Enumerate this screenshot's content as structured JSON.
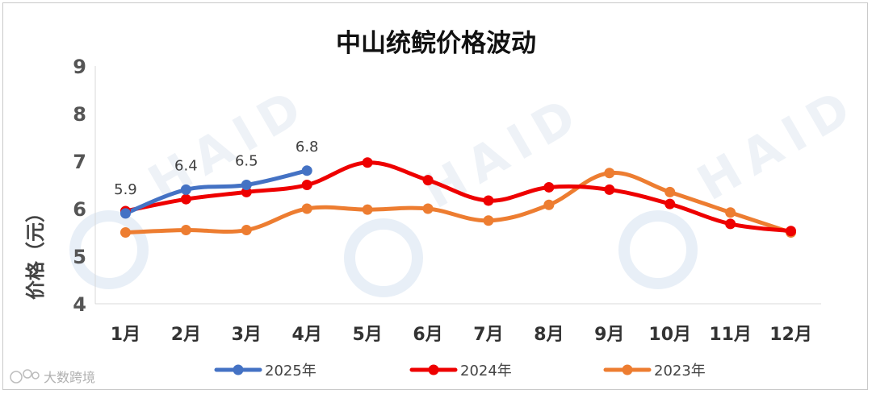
{
  "chart_data": {
    "type": "line",
    "title": "中山统鲩价格波动",
    "ylabel": "价格（元）",
    "xlabel": "",
    "categories": [
      "1月",
      "2月",
      "3月",
      "4月",
      "5月",
      "6月",
      "7月",
      "8月",
      "9月",
      "10月",
      "11月",
      "12月"
    ],
    "ylim": [
      4,
      9
    ],
    "yticks": [
      4,
      5,
      6,
      7,
      8,
      9
    ],
    "grid": false,
    "legend_position": "bottom",
    "series": [
      {
        "name": "2025年",
        "color": "#4472c4",
        "values": [
          5.9,
          6.4,
          6.5,
          6.8,
          null,
          null,
          null,
          null,
          null,
          null,
          null,
          null
        ],
        "labels": [
          "5.9",
          "6.4",
          "6.5",
          "6.8"
        ]
      },
      {
        "name": "2024年",
        "color": "#ee0000",
        "values": [
          5.95,
          6.2,
          6.35,
          6.5,
          6.97,
          6.6,
          6.17,
          6.45,
          6.4,
          6.1,
          5.68,
          5.53
        ]
      },
      {
        "name": "2023年",
        "color": "#ed7d31",
        "values": [
          5.5,
          5.55,
          5.55,
          6.0,
          5.98,
          6.0,
          5.75,
          6.08,
          6.75,
          6.35,
          5.92,
          5.5
        ]
      }
    ]
  },
  "watermark": {
    "source_text": "大数跨境",
    "brand_text": "HAID"
  }
}
